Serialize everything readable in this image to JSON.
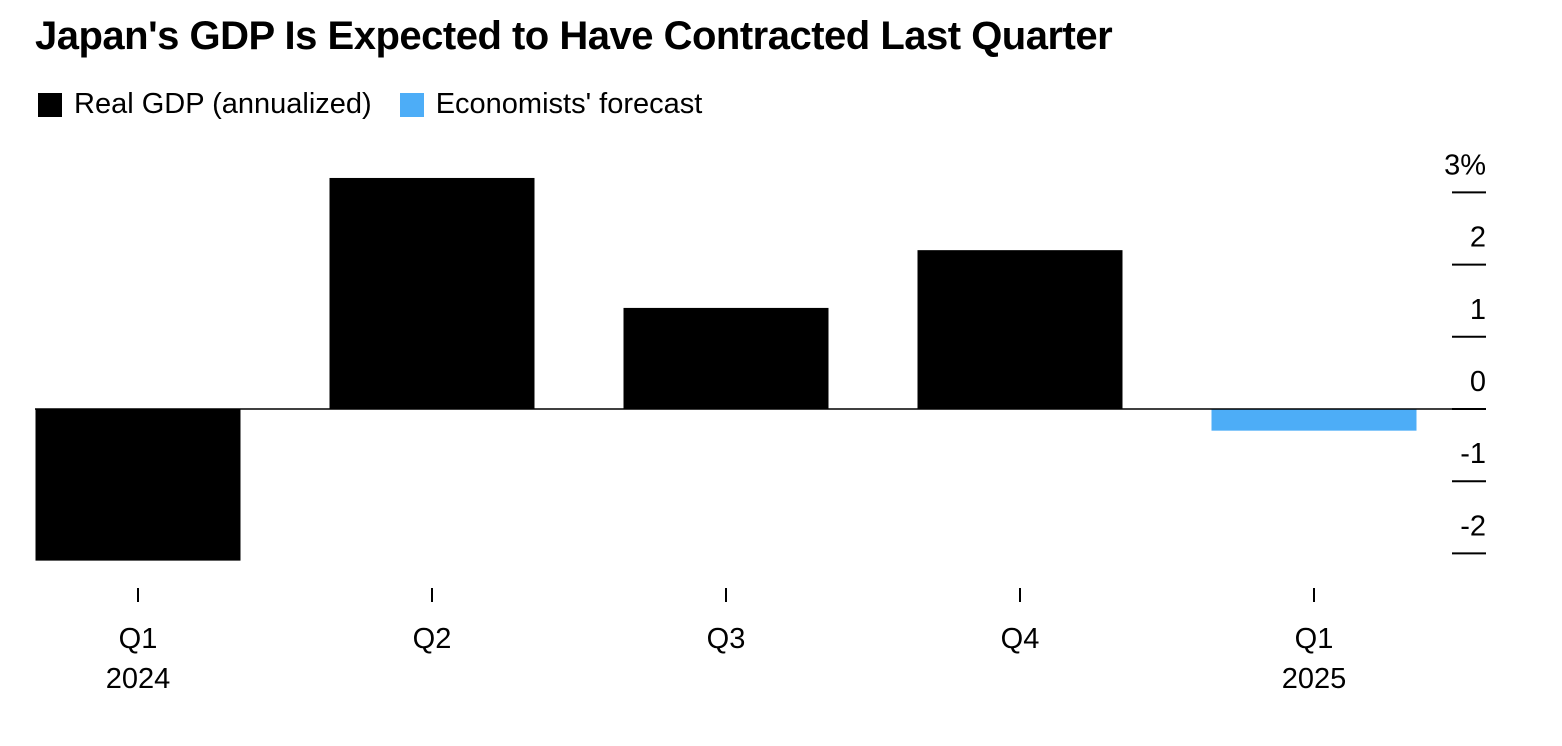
{
  "chart_data": {
    "type": "bar",
    "title": "Japan's GDP Is Expected to Have Contracted Last Quarter",
    "categories": [
      "Q1\n2024",
      "Q2",
      "Q3",
      "Q4",
      "Q1\n2025"
    ],
    "category_lines": [
      [
        "Q1",
        "2024"
      ],
      [
        "Q2"
      ],
      [
        "Q3"
      ],
      [
        "Q4"
      ],
      [
        "Q1",
        "2025"
      ]
    ],
    "series": [
      {
        "name": "Real GDP (annualized)",
        "color": "#000000",
        "values": [
          -2.1,
          3.2,
          1.4,
          2.2,
          null
        ]
      },
      {
        "name": "Economists' forecast",
        "color": "#4DADF7",
        "values": [
          null,
          null,
          null,
          null,
          -0.3
        ]
      }
    ],
    "y_ticks": [
      -2,
      -1,
      0,
      1,
      2,
      3
    ],
    "y_tick_labels": [
      "-2",
      "-1",
      "0",
      "1",
      "2",
      "3%"
    ],
    "ylim": [
      -2.4,
      3.4
    ],
    "y_axis_side": "right",
    "grid": false,
    "legend_position": "top-left",
    "xlabel": "",
    "ylabel": ""
  }
}
